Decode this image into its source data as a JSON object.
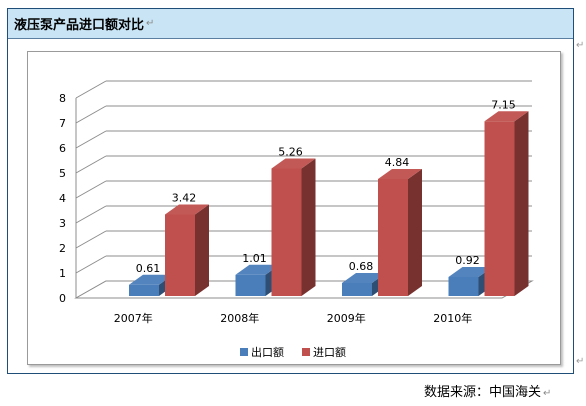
{
  "header": {
    "title": "液压泵产品进口额对比"
  },
  "source": {
    "label": "数据来源：中国海关"
  },
  "paragraph_mark": "↵",
  "colors": {
    "export": "#4a7ebb",
    "import": "#c0504d",
    "header_bg": "#c9e4f4"
  },
  "chart_data": {
    "type": "bar",
    "title": "",
    "xlabel": "",
    "ylabel": "",
    "categories": [
      "2007年",
      "2008年",
      "2009年",
      "2010年"
    ],
    "series": [
      {
        "name": "出口额",
        "values": [
          0.61,
          1.01,
          0.68,
          0.92
        ],
        "color": "#4a7ebb"
      },
      {
        "name": "进口额",
        "values": [
          3.42,
          5.26,
          4.84,
          7.15
        ],
        "color": "#c0504d"
      }
    ],
    "ylim": [
      0,
      8
    ],
    "yticks": [
      0,
      1,
      2,
      3,
      4,
      5,
      6,
      7,
      8
    ],
    "grid": true,
    "legend": "bottom",
    "style": "3d-column"
  }
}
